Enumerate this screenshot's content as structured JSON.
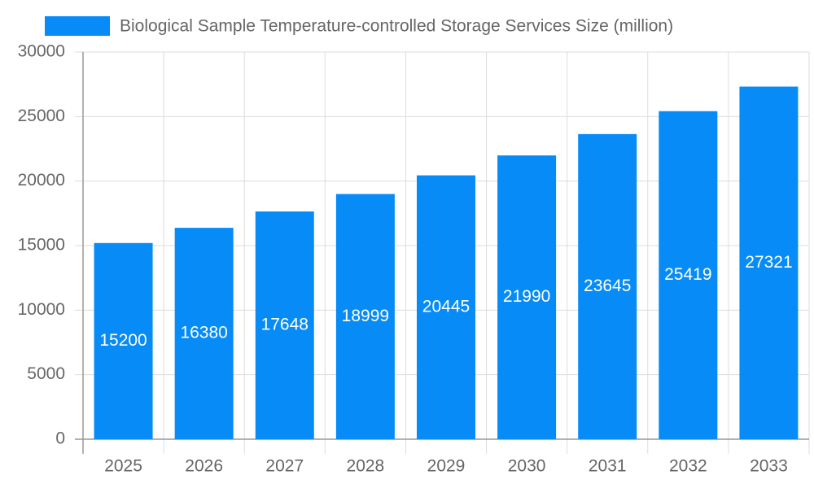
{
  "chart_data": {
    "type": "bar",
    "categories": [
      "2025",
      "2026",
      "2027",
      "2028",
      "2029",
      "2030",
      "2031",
      "2032",
      "2033"
    ],
    "series": [
      {
        "name": "Biological Sample Temperature-controlled Storage Services Size (million)",
        "color": "#068bf7",
        "values": [
          15200,
          16380,
          17648,
          18999,
          20445,
          21990,
          23645,
          25419,
          27321
        ]
      }
    ],
    "ylim": [
      0,
      30000
    ],
    "yticks": [
      0,
      5000,
      10000,
      15000,
      20000,
      25000,
      30000
    ],
    "grid": true,
    "legend": "top"
  }
}
